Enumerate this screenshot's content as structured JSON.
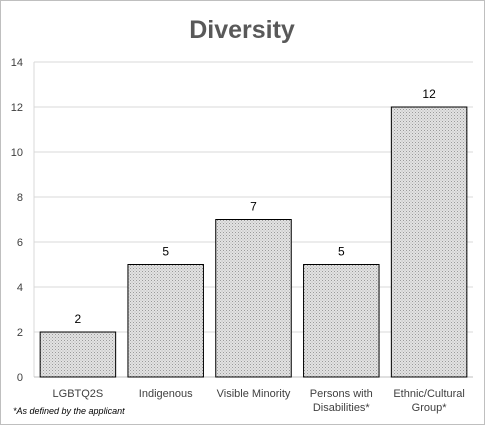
{
  "chart_data": {
    "type": "bar",
    "title": "Diversity",
    "categories": [
      [
        "LGBTQ2S"
      ],
      [
        "Indigenous"
      ],
      [
        "Visible Minority"
      ],
      [
        "Persons with",
        "Disabilities*"
      ],
      [
        "Ethnic/Cultural",
        "Group*"
      ]
    ],
    "values": [
      2,
      5,
      7,
      5,
      12
    ],
    "ylim": [
      0,
      14
    ],
    "yticks": [
      0,
      2,
      4,
      6,
      8,
      10,
      12,
      14
    ],
    "grid": true,
    "data_labels": true,
    "bar_color": "#d9d9d9",
    "bar_edge_color": "#000000",
    "grid_color": "#d9d9d9",
    "footnote": "*As defined by the applicant"
  }
}
